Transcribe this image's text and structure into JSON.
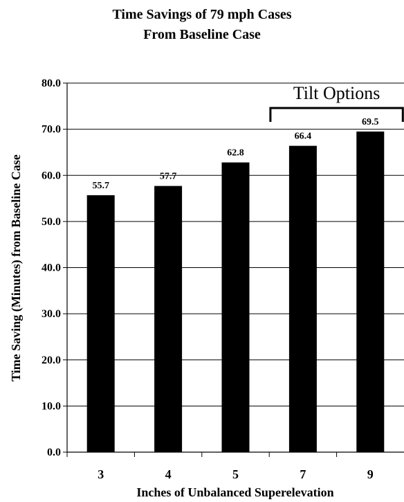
{
  "chart_data": {
    "type": "bar",
    "title": "Time Savings of 79 mph Cases",
    "subtitle": "From Baseline Case",
    "xlabel": "Inches of Unbalanced Superelevation",
    "ylabel": "Time Saving (Minutes) from Baseline Case",
    "categories": [
      "3",
      "4",
      "5",
      "7",
      "9"
    ],
    "values": [
      55.7,
      57.7,
      62.8,
      66.4,
      69.5
    ],
    "data_labels": [
      "55.7",
      "57.7",
      "62.8",
      "66.4",
      "69.5"
    ],
    "ylim": [
      0,
      80
    ],
    "yticks": [
      "0.0",
      "10.0",
      "20.0",
      "30.0",
      "40.0",
      "50.0",
      "60.0",
      "70.0",
      "80.0"
    ],
    "grid": true,
    "bar_color": "#000000",
    "annotation": {
      "text": "Tilt Options",
      "spans_categories": [
        "7",
        "9"
      ]
    }
  }
}
